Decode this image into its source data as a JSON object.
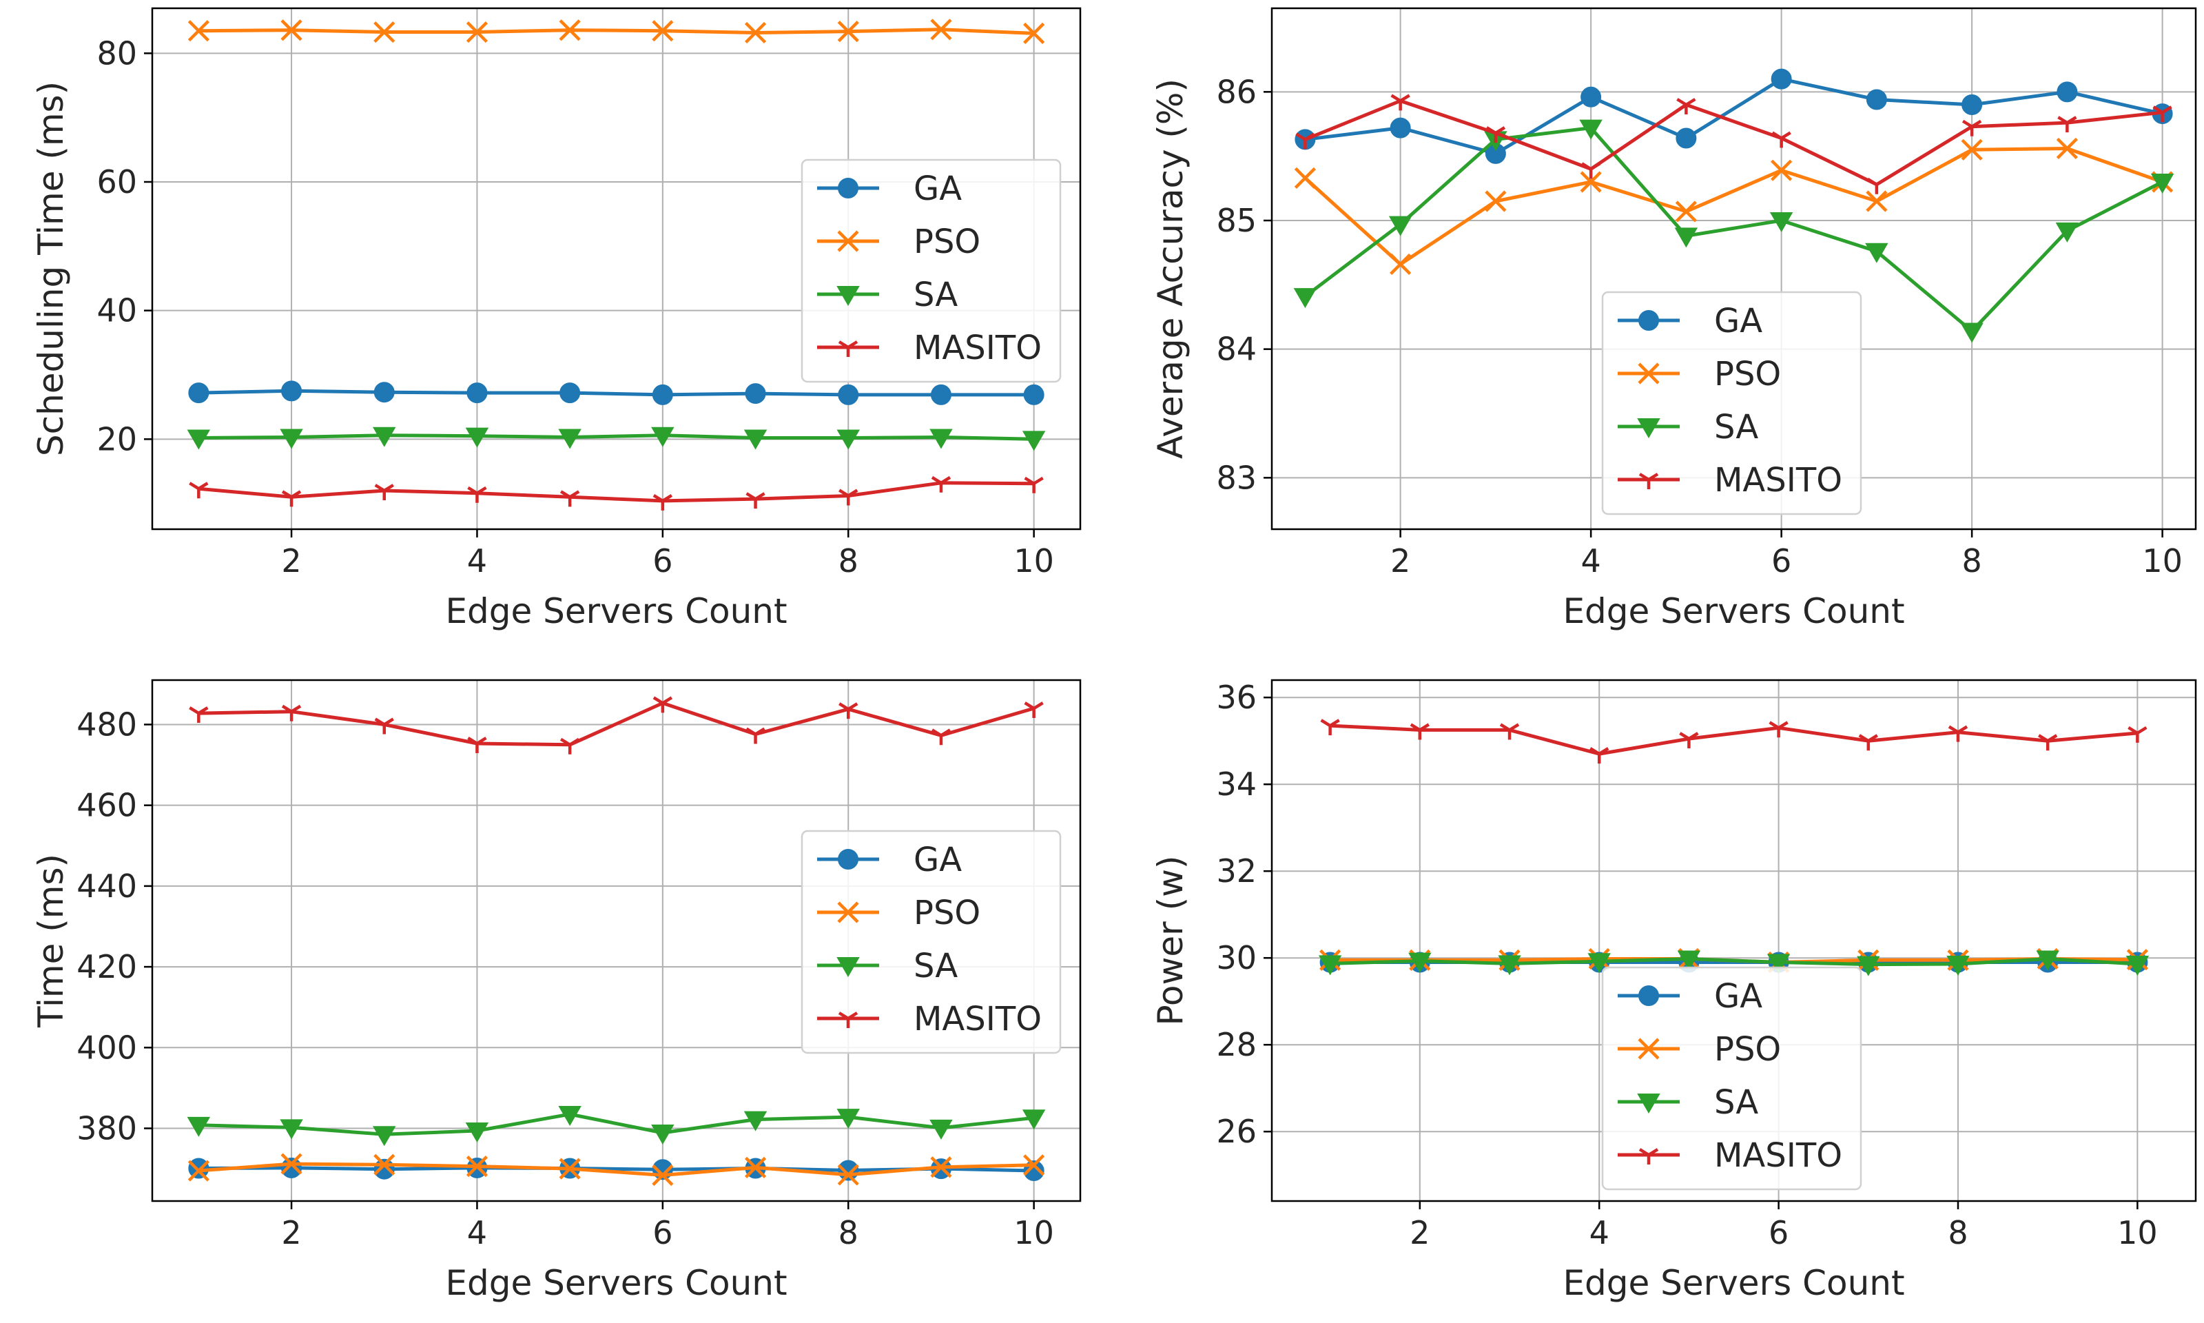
{
  "chart_data": [
    {
      "type": "line",
      "title": "",
      "xlabel": "Edge Servers Count",
      "ylabel": "Scheduling Time (ms)",
      "x": [
        1,
        2,
        3,
        4,
        5,
        6,
        7,
        8,
        9,
        10
      ],
      "xlim": [
        0.5,
        10.5
      ],
      "ylim": [
        6,
        87
      ],
      "xticks": [
        2,
        4,
        6,
        8,
        10
      ],
      "yticks": [
        20,
        40,
        60,
        80
      ],
      "grid": true,
      "legend": "center-right",
      "series": [
        {
          "name": "GA",
          "color": "#1f77b4",
          "marker": "circle",
          "values": [
            27.2,
            27.5,
            27.3,
            27.2,
            27.2,
            26.9,
            27.1,
            26.9,
            26.9,
            26.9
          ]
        },
        {
          "name": "PSO",
          "color": "#ff7f0e",
          "marker": "x",
          "values": [
            83.5,
            83.6,
            83.3,
            83.3,
            83.6,
            83.5,
            83.2,
            83.4,
            83.7,
            83.1
          ]
        },
        {
          "name": "SA",
          "color": "#2ca02c",
          "marker": "triangle-down",
          "values": [
            20.2,
            20.3,
            20.6,
            20.5,
            20.3,
            20.6,
            20.2,
            20.2,
            20.3,
            20.0
          ]
        },
        {
          "name": "MASITO",
          "color": "#d62728",
          "marker": "tri-down",
          "values": [
            12.3,
            11.0,
            12.0,
            11.6,
            11.0,
            10.4,
            10.7,
            11.2,
            13.2,
            13.1
          ]
        }
      ]
    },
    {
      "type": "line",
      "title": "",
      "xlabel": "Edge Servers Count",
      "ylabel": "Average Accuracy (%)",
      "x": [
        1,
        2,
        3,
        4,
        5,
        6,
        7,
        8,
        9,
        10
      ],
      "xlim": [
        0.65,
        10.35
      ],
      "ylim": [
        82.6,
        86.65
      ],
      "xticks": [
        2,
        4,
        6,
        8,
        10
      ],
      "yticks": [
        83,
        84,
        85,
        86
      ],
      "grid": true,
      "legend": "lower-center",
      "series": [
        {
          "name": "GA",
          "color": "#1f77b4",
          "marker": "circle",
          "values": [
            85.63,
            85.72,
            85.52,
            85.96,
            85.64,
            86.1,
            85.94,
            85.9,
            86.0,
            85.83
          ]
        },
        {
          "name": "PSO",
          "color": "#ff7f0e",
          "marker": "x",
          "values": [
            85.33,
            84.66,
            85.15,
            85.3,
            85.07,
            85.39,
            85.15,
            85.55,
            85.56,
            85.3
          ]
        },
        {
          "name": "SA",
          "color": "#2ca02c",
          "marker": "triangle-down",
          "values": [
            84.41,
            84.97,
            85.63,
            85.72,
            84.88,
            85.0,
            84.76,
            84.14,
            84.92,
            85.3
          ]
        },
        {
          "name": "MASITO",
          "color": "#d62728",
          "marker": "tri-down",
          "values": [
            85.63,
            85.93,
            85.68,
            85.4,
            85.9,
            85.64,
            85.28,
            85.73,
            85.76,
            85.84
          ]
        }
      ]
    },
    {
      "type": "line",
      "title": "",
      "xlabel": "Edge Servers Count",
      "ylabel": "Time (ms)",
      "x": [
        1,
        2,
        3,
        4,
        5,
        6,
        7,
        8,
        9,
        10
      ],
      "xlim": [
        0.5,
        10.5
      ],
      "ylim": [
        362,
        491
      ],
      "xticks": [
        2,
        4,
        6,
        8,
        10
      ],
      "yticks": [
        380,
        400,
        420,
        440,
        460,
        480
      ],
      "grid": true,
      "legend": "center-right",
      "series": [
        {
          "name": "GA",
          "color": "#1f77b4",
          "marker": "circle",
          "values": [
            370.1,
            370.2,
            369.9,
            370.2,
            370.1,
            369.8,
            370.1,
            369.6,
            370.0,
            369.5
          ]
        },
        {
          "name": "PSO",
          "color": "#ff7f0e",
          "marker": "x",
          "values": [
            369.5,
            371.2,
            371.0,
            370.6,
            370.0,
            368.4,
            370.3,
            368.5,
            370.4,
            370.9
          ]
        },
        {
          "name": "SA",
          "color": "#2ca02c",
          "marker": "triangle-down",
          "values": [
            380.8,
            380.2,
            378.5,
            379.4,
            383.5,
            378.9,
            382.2,
            382.8,
            380.1,
            382.6
          ]
        },
        {
          "name": "MASITO",
          "color": "#d62728",
          "marker": "tri-down",
          "values": [
            482.8,
            483.2,
            480.0,
            475.3,
            475.0,
            485.3,
            477.6,
            483.8,
            477.3,
            484.0
          ]
        }
      ]
    },
    {
      "type": "line",
      "title": "",
      "xlabel": "Edge Servers Count",
      "ylabel": "Power (w)",
      "x": [
        1,
        2,
        3,
        4,
        5,
        6,
        7,
        8,
        9,
        10
      ],
      "xlim": [
        0.35,
        10.65
      ],
      "ylim": [
        24.4,
        36.4
      ],
      "xticks": [
        2,
        4,
        6,
        8,
        10
      ],
      "yticks": [
        26,
        28,
        30,
        32,
        34,
        36
      ],
      "grid": true,
      "legend": "lower-center",
      "series": [
        {
          "name": "GA",
          "color": "#1f77b4",
          "marker": "circle",
          "values": [
            29.9,
            29.9,
            29.9,
            29.9,
            29.9,
            29.9,
            29.9,
            29.9,
            29.9,
            29.9
          ]
        },
        {
          "name": "PSO",
          "color": "#ff7f0e",
          "marker": "x",
          "values": [
            29.95,
            29.95,
            29.95,
            29.98,
            29.98,
            29.9,
            29.95,
            29.95,
            29.98,
            29.96
          ]
        },
        {
          "name": "SA",
          "color": "#2ca02c",
          "marker": "triangle-down",
          "values": [
            29.87,
            29.93,
            29.87,
            29.92,
            29.98,
            29.9,
            29.85,
            29.86,
            29.98,
            29.86
          ]
        },
        {
          "name": "MASITO",
          "color": "#d62728",
          "marker": "tri-down",
          "values": [
            35.35,
            35.25,
            35.25,
            34.7,
            35.05,
            35.3,
            35.0,
            35.2,
            35.0,
            35.18
          ]
        }
      ]
    }
  ]
}
